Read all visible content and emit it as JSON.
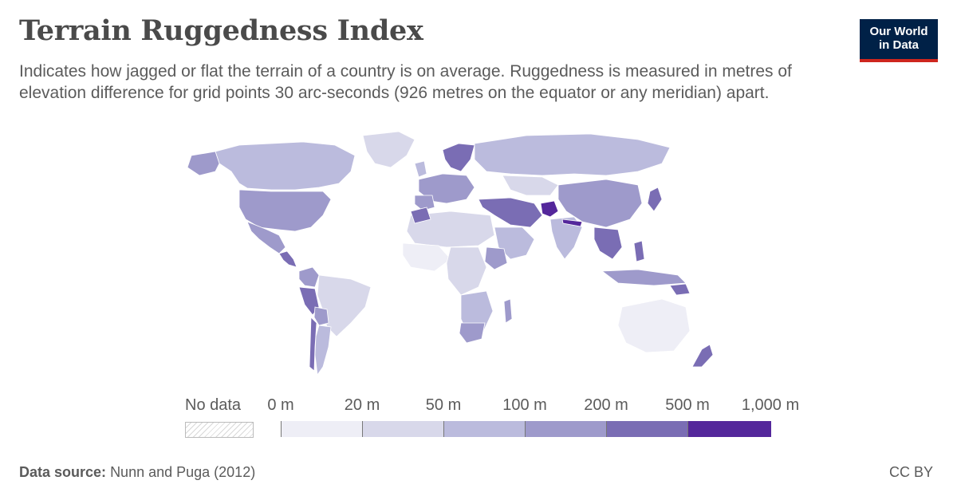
{
  "header": {
    "title": "Terrain Ruggedness Index",
    "subtitle": "Indicates how jagged or flat the terrain of a country is on average. Ruggedness is measured in metres of elevation difference for grid points 30 arc-seconds (926 metres on the equator or any meridian) apart."
  },
  "logo": {
    "line1": "Our World",
    "line2": "in Data",
    "bg_color": "#002147",
    "accent_color": "#ce261e"
  },
  "legend": {
    "no_data_label": "No data",
    "tick_labels": [
      "0 m",
      "20 m",
      "50 m",
      "100 m",
      "200 m",
      "500 m",
      "1,000 m"
    ],
    "bin_colors": [
      "#eeeef6",
      "#d8d8ea",
      "#bbbbdd",
      "#9e9acb",
      "#7a6db4",
      "#54279b"
    ]
  },
  "footer": {
    "source_label": "Data source:",
    "source_value": "Nunn and Puga (2012)",
    "license": "CC BY"
  },
  "map_colors": {
    "no_data": "#e8e8e8",
    "ocean": "#ffffff"
  }
}
